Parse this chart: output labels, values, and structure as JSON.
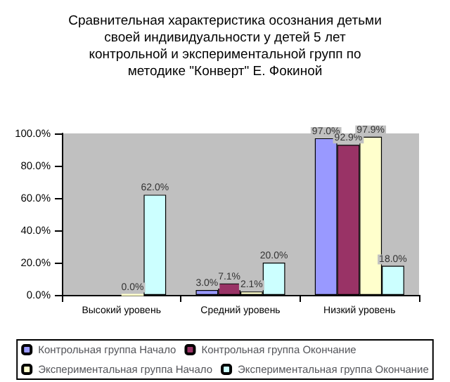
{
  "chart_data": {
    "type": "bar",
    "title": "Сравнительная характеристика осознания детьми\nсвоей индивидуальности у детей 5 лет\nконтрольной и экспериментальной групп по\nметодике \"Конверт\" Е. Фокиной",
    "categories": [
      "Высокий уровень",
      "Средний уровень",
      "Низкий уровень"
    ],
    "series": [
      {
        "name": "Контрольная группа Начало",
        "color": "#9999ff",
        "values": [
          0,
          3.0,
          97.0
        ],
        "value_labels": [
          null,
          "3.0%",
          "97.0%"
        ]
      },
      {
        "name": "Контрольная группа Окончание",
        "color": "#993366",
        "values": [
          0,
          7.1,
          92.9
        ],
        "value_labels": [
          null,
          "7.1%",
          "92.9%"
        ]
      },
      {
        "name": "Экспериментальная группа Начало",
        "color": "#ffffcc",
        "values": [
          0,
          2.1,
          97.9
        ],
        "value_labels": [
          "0.0%",
          "2.1%",
          "97.9%"
        ]
      },
      {
        "name": "Экспериментальная группа Окончание",
        "color": "#ccffff",
        "values": [
          62.0,
          20.0,
          18.0
        ],
        "value_labels": [
          "62.0%",
          "20.0%",
          "18.0%"
        ]
      }
    ],
    "ylim": [
      0,
      100
    ],
    "yticks": [
      {
        "value": 0,
        "label": "0.0%"
      },
      {
        "value": 20,
        "label": "20.0%"
      },
      {
        "value": 40,
        "label": "40.0%"
      },
      {
        "value": 60,
        "label": "60.0%"
      },
      {
        "value": 80,
        "label": "80.0%"
      },
      {
        "value": 100,
        "label": "100.0%"
      }
    ],
    "grid": false,
    "legend": "bottom"
  }
}
